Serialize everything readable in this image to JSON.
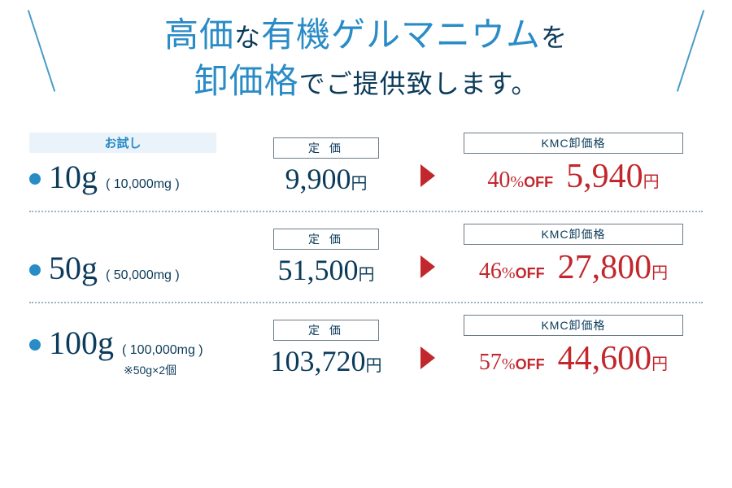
{
  "colors": {
    "accent_blue": "#2a8cc7",
    "dark_navy": "#0b3b5a",
    "red": "#c1272d",
    "pale_blue_bg": "#eaf3fa",
    "dotted_border": "#9fb2bd",
    "box_border": "#6b7c87",
    "background": "#ffffff"
  },
  "typography": {
    "serif_family": "Hiragino Mincho ProN / Yu Mincho",
    "sans_family": "Hiragino Kaku Gothic ProN",
    "title_large_pt": 42,
    "title_small_pt": 32,
    "weight_main_pt": 40,
    "price_pt": 36,
    "kmc_price_pt": 42,
    "label_pt": 14
  },
  "header": {
    "line1_a": "高価",
    "line1_b": "な",
    "line1_c": "有機ゲルマニウム",
    "line1_d": "を",
    "line2_a": "卸価格",
    "line2_b": "でご提供致します。"
  },
  "labels": {
    "trial": "お試し",
    "list_price": "定 価",
    "kmc_price": "KMC卸価格",
    "yen": "円",
    "pct": "%",
    "off": "OFF"
  },
  "rows": [
    {
      "trial": true,
      "weight": "10g",
      "weight_mg": "( 10,000mg )",
      "note": "",
      "list_price": "9,900",
      "discount_pct": "40",
      "kmc_price": "5,940"
    },
    {
      "trial": false,
      "weight": "50g",
      "weight_mg": "( 50,000mg )",
      "note": "",
      "list_price": "51,500",
      "discount_pct": "46",
      "kmc_price": "27,800"
    },
    {
      "trial": false,
      "weight": "100g",
      "weight_mg": "( 100,000mg )",
      "note": "※50g×2個",
      "list_price": "103,720",
      "discount_pct": "57",
      "kmc_price": "44,600"
    }
  ]
}
